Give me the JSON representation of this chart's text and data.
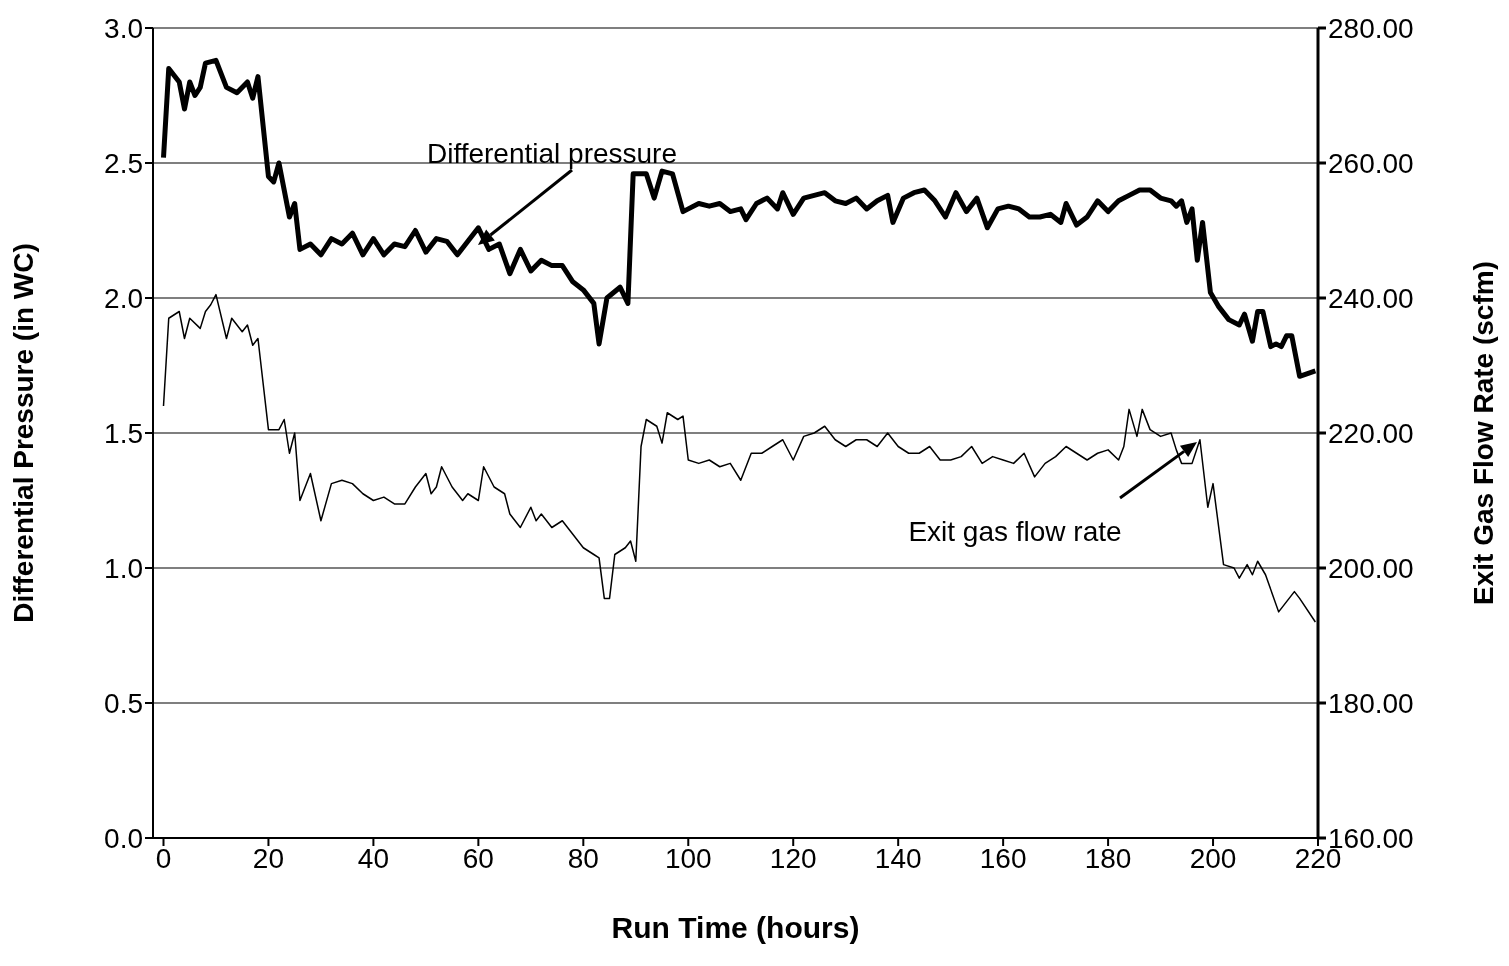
{
  "chart_data": {
    "type": "line",
    "xlabel": "Run Time (hours)",
    "ylabel": "Differential Pressure  (in WC)",
    "y2label": "Exit Gas Flow Rate (scfm)",
    "xlim": [
      -2,
      220
    ],
    "xticks": [
      0,
      20,
      40,
      60,
      80,
      100,
      120,
      140,
      160,
      180,
      200,
      220
    ],
    "ylim": [
      0,
      3
    ],
    "yticks": [
      {
        "value": 0,
        "label": "0.0"
      },
      {
        "value": 0.5,
        "label": "0.5"
      },
      {
        "value": 1,
        "label": "1.0"
      },
      {
        "value": 1.5,
        "label": "1.5"
      },
      {
        "value": 2,
        "label": "2.0"
      },
      {
        "value": 2.5,
        "label": "2.5"
      },
      {
        "value": 3,
        "label": "3.0"
      }
    ],
    "y2lim": [
      160,
      280
    ],
    "y2ticks": [
      {
        "value": 160,
        "label": "160.00"
      },
      {
        "value": 180,
        "label": "180.00"
      },
      {
        "value": 200,
        "label": "200.00"
      },
      {
        "value": 220,
        "label": "220.00"
      },
      {
        "value": 240,
        "label": "240.00"
      },
      {
        "value": 260,
        "label": "260.00"
      },
      {
        "value": 280,
        "label": "280.00"
      }
    ],
    "grid": "y",
    "marker": "none",
    "line_style": "solid",
    "annotations": [
      "Differential pressure",
      "Exit gas flow rate"
    ],
    "series": [
      {
        "color": "#000000",
        "x": [
          0,
          1,
          3,
          4,
          5,
          6,
          7,
          8,
          10,
          12,
          14,
          16,
          17,
          18,
          20,
          21,
          22,
          24,
          25,
          26,
          28,
          30,
          32,
          34,
          36,
          38,
          40,
          42,
          44,
          46,
          48,
          50,
          52,
          54,
          56,
          58,
          60,
          62,
          64,
          66,
          68,
          70,
          72,
          74,
          76,
          78,
          80,
          82,
          83,
          84.5,
          87,
          88.5,
          89.5,
          92,
          93.5,
          95,
          97,
          99,
          100,
          102,
          104,
          106,
          108,
          110,
          111,
          113,
          115,
          117,
          118,
          120,
          122,
          124,
          126,
          128,
          130,
          132,
          134,
          136,
          138,
          139,
          141,
          143,
          145,
          147,
          149,
          151,
          153,
          155,
          157,
          159,
          161,
          163,
          165,
          167,
          169,
          171,
          172,
          174,
          176,
          178,
          180,
          182,
          184,
          186,
          188,
          190,
          192,
          193,
          194,
          195,
          196,
          197,
          198,
          199.5,
          201,
          203,
          205,
          206,
          207.5,
          208.5,
          209.5,
          211,
          212,
          213,
          214,
          215,
          216.5,
          218,
          219.5
        ],
        "values": [
          2.52,
          2.85,
          2.8,
          2.7,
          2.8,
          2.75,
          2.78,
          2.87,
          2.88,
          2.78,
          2.76,
          2.8,
          2.74,
          2.82,
          2.45,
          2.43,
          2.5,
          2.3,
          2.35,
          2.18,
          2.2,
          2.16,
          2.22,
          2.2,
          2.24,
          2.16,
          2.22,
          2.16,
          2.2,
          2.19,
          2.25,
          2.17,
          2.22,
          2.21,
          2.16,
          2.21,
          2.26,
          2.18,
          2.2,
          2.09,
          2.18,
          2.1,
          2.14,
          2.12,
          2.12,
          2.06,
          2.03,
          1.98,
          1.83,
          2.0,
          2.04,
          1.98,
          2.46,
          2.46,
          2.37,
          2.47,
          2.46,
          2.32,
          2.33,
          2.35,
          2.34,
          2.35,
          2.32,
          2.33,
          2.29,
          2.35,
          2.37,
          2.33,
          2.39,
          2.31,
          2.37,
          2.38,
          2.39,
          2.36,
          2.35,
          2.37,
          2.33,
          2.36,
          2.38,
          2.28,
          2.37,
          2.39,
          2.4,
          2.36,
          2.3,
          2.39,
          2.32,
          2.37,
          2.26,
          2.33,
          2.34,
          2.33,
          2.3,
          2.3,
          2.31,
          2.28,
          2.35,
          2.27,
          2.3,
          2.36,
          2.32,
          2.36,
          2.38,
          2.4,
          2.4,
          2.37,
          2.36,
          2.34,
          2.36,
          2.28,
          2.33,
          2.14,
          2.28,
          2.02,
          1.97,
          1.92,
          1.9,
          1.94,
          1.84,
          1.95,
          1.95,
          1.82,
          1.83,
          1.82,
          1.86,
          1.86,
          1.71,
          1.72,
          1.73
        ]
      },
      {
        "color": "#000000",
        "axis": "y2",
        "x": [
          0,
          1,
          3,
          4,
          5,
          7,
          8,
          9,
          10,
          12,
          13,
          14,
          15,
          16,
          17,
          18,
          20,
          22,
          23,
          24,
          25,
          26,
          28,
          30,
          32,
          34,
          36,
          38,
          40,
          42,
          44,
          46,
          48,
          50,
          51,
          52,
          53,
          55,
          57,
          58,
          60,
          61,
          63,
          65,
          66,
          68,
          70,
          71,
          72,
          74,
          76,
          78,
          80,
          82,
          83,
          84,
          85,
          86,
          88,
          89,
          90,
          91,
          92,
          94,
          95,
          96,
          98,
          99,
          100,
          102,
          104,
          106,
          108,
          110,
          112,
          114,
          116,
          118,
          120,
          122,
          124,
          126,
          128,
          130,
          132,
          134,
          136,
          138,
          140,
          142,
          144,
          146,
          148,
          150,
          152,
          154,
          156,
          158,
          160,
          162,
          164,
          166,
          168,
          170,
          172,
          174,
          176,
          178,
          180,
          182,
          183,
          184,
          185.5,
          186.5,
          188,
          190,
          192,
          193,
          194,
          196,
          197.5,
          199,
          200,
          202,
          204,
          205,
          206.5,
          207.5,
          208.5,
          210,
          212.5,
          214.5,
          215.5,
          216.5,
          219.5
        ],
        "values": [
          224,
          237,
          238,
          234,
          237,
          235.5,
          238,
          239,
          240.5,
          234,
          237,
          236,
          235,
          236,
          233,
          234,
          220.5,
          220.5,
          222,
          217,
          220,
          210,
          214,
          207,
          212.5,
          213,
          212.5,
          211,
          210,
          210.5,
          209.5,
          209.5,
          212,
          214,
          211,
          212,
          215,
          212,
          210,
          211,
          210,
          215,
          212,
          211,
          208,
          206,
          209,
          207,
          208,
          206,
          207,
          205,
          203,
          202,
          201.5,
          195.5,
          195.5,
          202,
          203,
          204,
          201,
          218,
          222,
          221,
          218.5,
          223,
          222,
          222.5,
          216,
          215.5,
          216,
          215,
          215.5,
          213,
          217,
          217,
          218,
          219,
          216,
          219.5,
          220,
          221,
          219,
          218,
          219,
          219,
          218,
          220,
          218,
          217,
          217,
          218,
          216,
          216,
          216.5,
          218,
          215.5,
          216.5,
          216,
          215.5,
          217,
          213.5,
          215.5,
          216.5,
          218,
          217,
          216,
          217,
          217.5,
          216,
          218,
          223.5,
          219.5,
          223.5,
          220.5,
          219.5,
          220,
          217.5,
          215.5,
          215.5,
          219,
          209,
          212.5,
          200.5,
          200,
          198.5,
          200.5,
          199,
          201,
          199,
          193.5,
          195.5,
          196.5,
          195.5,
          192
        ]
      }
    ]
  }
}
